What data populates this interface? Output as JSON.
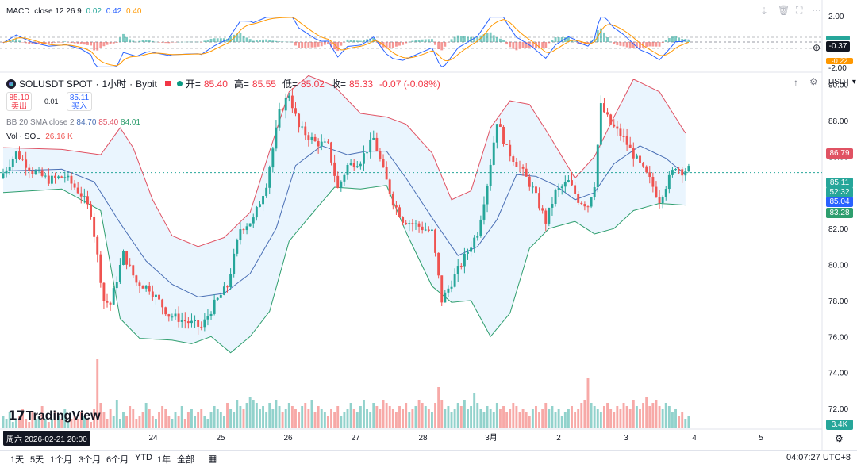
{
  "macd": {
    "label": "MACD",
    "params": "close 12 26 9",
    "macd_value": "0.02",
    "signal_value": "0.42",
    "hist_value": "0.40",
    "axis_top": "2.00",
    "axis_bottom": "-2.00",
    "tag_value": "-0.37",
    "tag_value2": "-0.22"
  },
  "symbol": {
    "name": "SOLUSDT SPOT",
    "interval": "1小时",
    "exchange": "Bybit",
    "open_label": "开=",
    "open": "85.40",
    "high_label": "高=",
    "high": "85.55",
    "low_label": "低=",
    "low": "85.02",
    "close_label": "收=",
    "close": "85.33",
    "change": "-0.07 (-0.08%)",
    "currency": "USDT"
  },
  "trade": {
    "sell_price": "85.10",
    "sell_label": "卖出",
    "spread": "0.01",
    "buy_price": "85.11",
    "buy_label": "买入"
  },
  "bb": {
    "label": "BB 20 SMA close 2",
    "basis": "84.70",
    "upper": "85.40",
    "lower": "84.01"
  },
  "vol": {
    "label": "Vol · SOL",
    "value": "26.16 K"
  },
  "price_tags": {
    "upper_band": "86.79",
    "last_price": "85.11",
    "countdown": "52:32",
    "basis": "85.04",
    "lower_band": "83.28",
    "volume": "3.4K"
  },
  "date_tag": "周六 2026-02-21  20:00",
  "brand": "TradingView",
  "ranges": [
    "1天",
    "5天",
    "1个月",
    "3个月",
    "6个月",
    "YTD",
    "1年",
    "全部"
  ],
  "clock": "04:07:27 UTC+8",
  "colors": {
    "up": "#26a69a",
    "down": "#ef5350",
    "bb_upper": "#e05263",
    "bb_lower": "#2e9e6e",
    "bb_basis": "#4a6fb5",
    "bb_fill": "#e3f2fd",
    "macd_line": "#2962ff",
    "signal_line": "#ff9800"
  },
  "chart_data": {
    "type": "candlestick",
    "title": "SOLUSDT SPOT · 1小时 · Bybit",
    "y_ticks": [
      90.0,
      88.0,
      86.0,
      84.0,
      82.0,
      80.0,
      78.0,
      76.0,
      74.0,
      72.0
    ],
    "ylim": [
      70.9,
      91.0
    ],
    "x_ticks": [
      "24",
      "25",
      "26",
      "27",
      "28",
      "3月",
      "2",
      "3",
      "4",
      "5"
    ],
    "price_path": [
      [
        0,
        84.8
      ],
      [
        5,
        86.2
      ],
      [
        10,
        85.2
      ],
      [
        15,
        84.7
      ],
      [
        20,
        84.9
      ],
      [
        25,
        83.9
      ],
      [
        28,
        82.9
      ],
      [
        32,
        78.0
      ],
      [
        34,
        77.8
      ],
      [
        38,
        80.6
      ],
      [
        42,
        79.0
      ],
      [
        46,
        78.7
      ],
      [
        52,
        77.2
      ],
      [
        58,
        76.8
      ],
      [
        62,
        76.5
      ],
      [
        66,
        77.8
      ],
      [
        70,
        78.8
      ],
      [
        74,
        82.0
      ],
      [
        78,
        82.5
      ],
      [
        82,
        84.5
      ],
      [
        86,
        88.4
      ],
      [
        89,
        89.5
      ],
      [
        92,
        87.6
      ],
      [
        97,
        86.8
      ],
      [
        101,
        86.6
      ],
      [
        104,
        84.2
      ],
      [
        107,
        85.5
      ],
      [
        111,
        85.8
      ],
      [
        115,
        87.0
      ],
      [
        118,
        85.2
      ],
      [
        121,
        83.5
      ],
      [
        124,
        82.5
      ],
      [
        128,
        82.2
      ],
      [
        133,
        81.8
      ],
      [
        136,
        78.0
      ],
      [
        139,
        79.0
      ],
      [
        143,
        80.4
      ],
      [
        147,
        81.8
      ],
      [
        150,
        84.5
      ],
      [
        153,
        88.0
      ],
      [
        156,
        86.4
      ],
      [
        160,
        85.4
      ],
      [
        164,
        84.2
      ],
      [
        168,
        82.4
      ],
      [
        171,
        84.0
      ],
      [
        175,
        84.6
      ],
      [
        178,
        83.6
      ],
      [
        181,
        83.3
      ],
      [
        183,
        84.5
      ],
      [
        185,
        88.8
      ],
      [
        188,
        87.8
      ],
      [
        192,
        87.0
      ],
      [
        196,
        85.8
      ],
      [
        200,
        84.7
      ],
      [
        203,
        83.6
      ],
      [
        205,
        84.4
      ],
      [
        208,
        85.5
      ],
      [
        210,
        85.2
      ],
      [
        212,
        85.3
      ]
    ],
    "bb_upper_path": [
      [
        0,
        86.5
      ],
      [
        18,
        86.4
      ],
      [
        30,
        86.1
      ],
      [
        36,
        87.6
      ],
      [
        40,
        86.5
      ],
      [
        46,
        83.6
      ],
      [
        52,
        81.6
      ],
      [
        60,
        81.0
      ],
      [
        68,
        81.5
      ],
      [
        76,
        82.9
      ],
      [
        82,
        86.3
      ],
      [
        88,
        89.6
      ],
      [
        94,
        90.5
      ],
      [
        102,
        89.9
      ],
      [
        110,
        88.4
      ],
      [
        118,
        88.2
      ],
      [
        124,
        87.8
      ],
      [
        132,
        86.2
      ],
      [
        138,
        83.6
      ],
      [
        144,
        84.1
      ],
      [
        150,
        87.6
      ],
      [
        156,
        89.1
      ],
      [
        162,
        88.9
      ],
      [
        168,
        87.2
      ],
      [
        176,
        84.8
      ],
      [
        182,
        86.0
      ],
      [
        188,
        88.2
      ],
      [
        194,
        90.3
      ],
      [
        202,
        89.6
      ],
      [
        210,
        87.3
      ]
    ],
    "bb_lower_path": [
      [
        0,
        84.0
      ],
      [
        18,
        84.2
      ],
      [
        30,
        83.0
      ],
      [
        36,
        77.0
      ],
      [
        42,
        75.9
      ],
      [
        52,
        75.8
      ],
      [
        58,
        75.6
      ],
      [
        64,
        76.0
      ],
      [
        70,
        75.1
      ],
      [
        76,
        76.0
      ],
      [
        82,
        77.4
      ],
      [
        88,
        81.3
      ],
      [
        94,
        82.6
      ],
      [
        102,
        84.3
      ],
      [
        110,
        84.2
      ],
      [
        118,
        84.4
      ],
      [
        124,
        81.8
      ],
      [
        132,
        78.8
      ],
      [
        138,
        77.9
      ],
      [
        144,
        78.0
      ],
      [
        150,
        76.0
      ],
      [
        156,
        77.3
      ],
      [
        162,
        80.9
      ],
      [
        168,
        82.0
      ],
      [
        176,
        82.4
      ],
      [
        182,
        81.7
      ],
      [
        188,
        82.0
      ],
      [
        194,
        83.0
      ],
      [
        202,
        83.4
      ],
      [
        210,
        83.3
      ]
    ],
    "bb_basis_path": [
      [
        0,
        85.2
      ],
      [
        18,
        85.3
      ],
      [
        28,
        84.6
      ],
      [
        36,
        82.3
      ],
      [
        44,
        80.2
      ],
      [
        52,
        78.9
      ],
      [
        60,
        78.2
      ],
      [
        68,
        78.4
      ],
      [
        76,
        79.5
      ],
      [
        84,
        82.0
      ],
      [
        90,
        85.5
      ],
      [
        98,
        86.6
      ],
      [
        106,
        86.1
      ],
      [
        112,
        86.3
      ],
      [
        118,
        86.3
      ],
      [
        124,
        84.8
      ],
      [
        132,
        82.6
      ],
      [
        140,
        80.5
      ],
      [
        146,
        81.0
      ],
      [
        152,
        82.5
      ],
      [
        158,
        85.0
      ],
      [
        164,
        84.9
      ],
      [
        170,
        84.4
      ],
      [
        176,
        83.6
      ],
      [
        182,
        84.0
      ],
      [
        188,
        85.6
      ],
      [
        196,
        86.6
      ],
      [
        204,
        85.9
      ],
      [
        210,
        85.0
      ]
    ],
    "volume_k": [
      4,
      3,
      5,
      2,
      3,
      4,
      6,
      3,
      2,
      5,
      3,
      4,
      7,
      3,
      2,
      3,
      5,
      4,
      3,
      6,
      2,
      3,
      4,
      3,
      5,
      4,
      3,
      2,
      6,
      22,
      8,
      5,
      3,
      6,
      4,
      9,
      3,
      5,
      4,
      7,
      6,
      3,
      4,
      5,
      8,
      6,
      4,
      3,
      5,
      7,
      6,
      4,
      3,
      5,
      4,
      7,
      3,
      5,
      6,
      4,
      5,
      6,
      4,
      3,
      5,
      7,
      6,
      5,
      4,
      8,
      6,
      5,
      9,
      7,
      6,
      8,
      10,
      9,
      8,
      6,
      7,
      5,
      8,
      6,
      9,
      7,
      5,
      6,
      8,
      7,
      6,
      5,
      7,
      8,
      6,
      9,
      5,
      7,
      6,
      5,
      4,
      6,
      5,
      7,
      4,
      5,
      6,
      8,
      6,
      5,
      7,
      9,
      6,
      5,
      8,
      7,
      6,
      9,
      8,
      7,
      6,
      5,
      7,
      6,
      8,
      5,
      6,
      7,
      9,
      8,
      7,
      6,
      5,
      8,
      13,
      9,
      6,
      7,
      5,
      6,
      8,
      7,
      9,
      6,
      7,
      11,
      8,
      6,
      5,
      7,
      6,
      5,
      8,
      6,
      7,
      5,
      6,
      8,
      7,
      5,
      6,
      5,
      4,
      6,
      7,
      5,
      6,
      8,
      6,
      7,
      5,
      6,
      4,
      5,
      6,
      7,
      5,
      6,
      8,
      9,
      16,
      8,
      7,
      6,
      5,
      7,
      8,
      6,
      5,
      7,
      6,
      8,
      7,
      6,
      9,
      7,
      6,
      8,
      10,
      7,
      8,
      9,
      7,
      6,
      8,
      7,
      5,
      6,
      4,
      5,
      3,
      4
    ],
    "vol_ylim": [
      0,
      30
    ],
    "macd_ylim": [
      -2.0,
      2.0
    ]
  }
}
